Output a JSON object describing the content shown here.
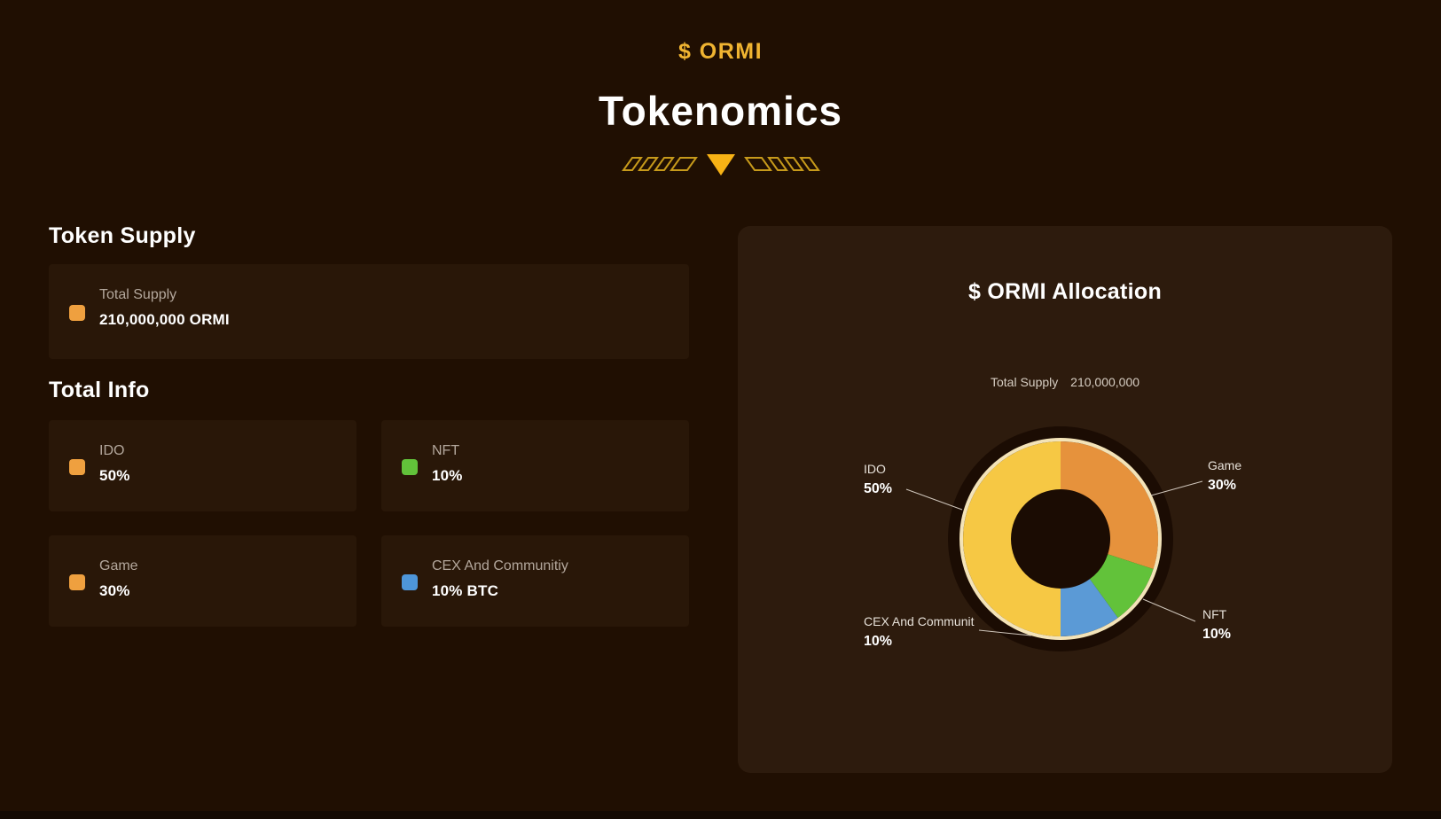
{
  "theme": {
    "page_bg": "#200f02",
    "card_bg": "#291708",
    "panel_bg": "#2d1b0d",
    "accent_yellow": "#f0b431",
    "muted_text": "#b3a79c",
    "line_color": "#cfc6bb"
  },
  "header": {
    "token_symbol": "$ ORMI",
    "title": "Tokenomics"
  },
  "token_supply": {
    "heading": "Token Supply",
    "card": {
      "label": "Total Supply",
      "value": "210,000,000 ORMI",
      "icon_color": "#efa03f"
    }
  },
  "total_info": {
    "heading": "Total Info",
    "cards": [
      {
        "label": "IDO",
        "value": "50%",
        "icon_color": "#efa03f"
      },
      {
        "label": "NFT",
        "value": "10%",
        "icon_color": "#62c23a"
      },
      {
        "label": "Game",
        "value": "30%",
        "icon_color": "#efa03f"
      },
      {
        "label": "CEX And Communitiy",
        "value": "10% BTC",
        "icon_color": "#4e96d9"
      }
    ]
  },
  "chart_panel": {
    "title": "$ ORMI Allocation",
    "subtitle_label": "Total Supply",
    "subtitle_value": "210,000,000"
  },
  "chart_data": {
    "type": "pie",
    "donut": true,
    "title": "$ ORMI Allocation",
    "total_supply": "210,000,000",
    "start_angle_deg": 180,
    "direction": "clockwise",
    "outer_ring_color": "#f3e3b8",
    "hole_color": "#1b0c03",
    "slices": [
      {
        "label": "IDO",
        "pct": 50,
        "pct_label": "50%",
        "color": "#f6c844"
      },
      {
        "label": "Game",
        "pct": 30,
        "pct_label": "30%",
        "color": "#e6923c"
      },
      {
        "label": "NFT",
        "pct": 10,
        "pct_label": "10%",
        "color": "#62c23a"
      },
      {
        "label": "CEX And Communit",
        "pct": 10,
        "pct_label": "10%",
        "color": "#5b9ad6"
      }
    ]
  }
}
